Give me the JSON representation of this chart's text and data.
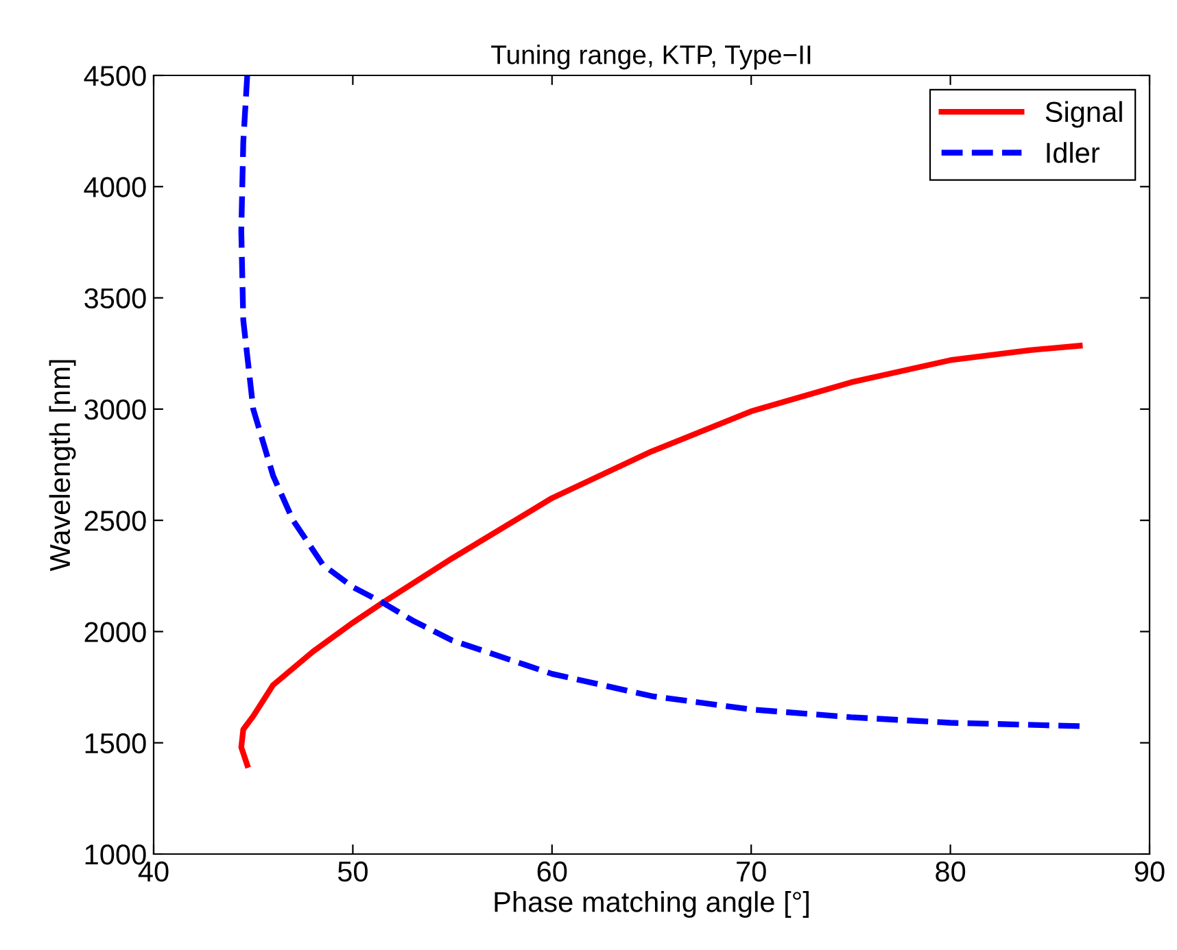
{
  "chart_data": {
    "type": "line",
    "title": "Tuning range, KTP, Type−II",
    "xlabel": "Phase matching angle [°]",
    "ylabel": "Wavelength [nm]",
    "xlim": [
      40,
      90
    ],
    "xticks": [
      40,
      50,
      60,
      70,
      80,
      90
    ],
    "ylim": [
      1000,
      4500
    ],
    "yticks": [
      1000,
      1500,
      2000,
      2500,
      3000,
      3500,
      4000,
      4500
    ],
    "grid": false,
    "legend": "top right",
    "series": [
      {
        "name": "Signal",
        "color": "#ff0000",
        "line_style": "solid",
        "x": [
          44.7,
          44.4,
          44.5,
          45,
          46,
          48,
          50,
          51.5,
          55,
          60,
          65,
          70,
          75,
          80,
          84,
          86.5
        ],
        "values": [
          1400,
          1480,
          1560,
          1620,
          1760,
          1910,
          2040,
          2130,
          2330,
          2600,
          2810,
          2990,
          3120,
          3220,
          3265,
          3285
        ]
      },
      {
        "name": "Idler",
        "color": "#0000ff",
        "line_style": "dashed",
        "x": [
          44.7,
          44.5,
          44.4,
          44.5,
          45,
          46,
          47,
          48.5,
          50,
          51.5,
          53,
          55,
          60,
          65,
          70,
          75,
          80,
          86.5
        ],
        "values": [
          4500,
          4200,
          3800,
          3400,
          3000,
          2700,
          2500,
          2300,
          2200,
          2130,
          2050,
          1960,
          1810,
          1710,
          1650,
          1615,
          1590,
          1575
        ]
      }
    ]
  }
}
